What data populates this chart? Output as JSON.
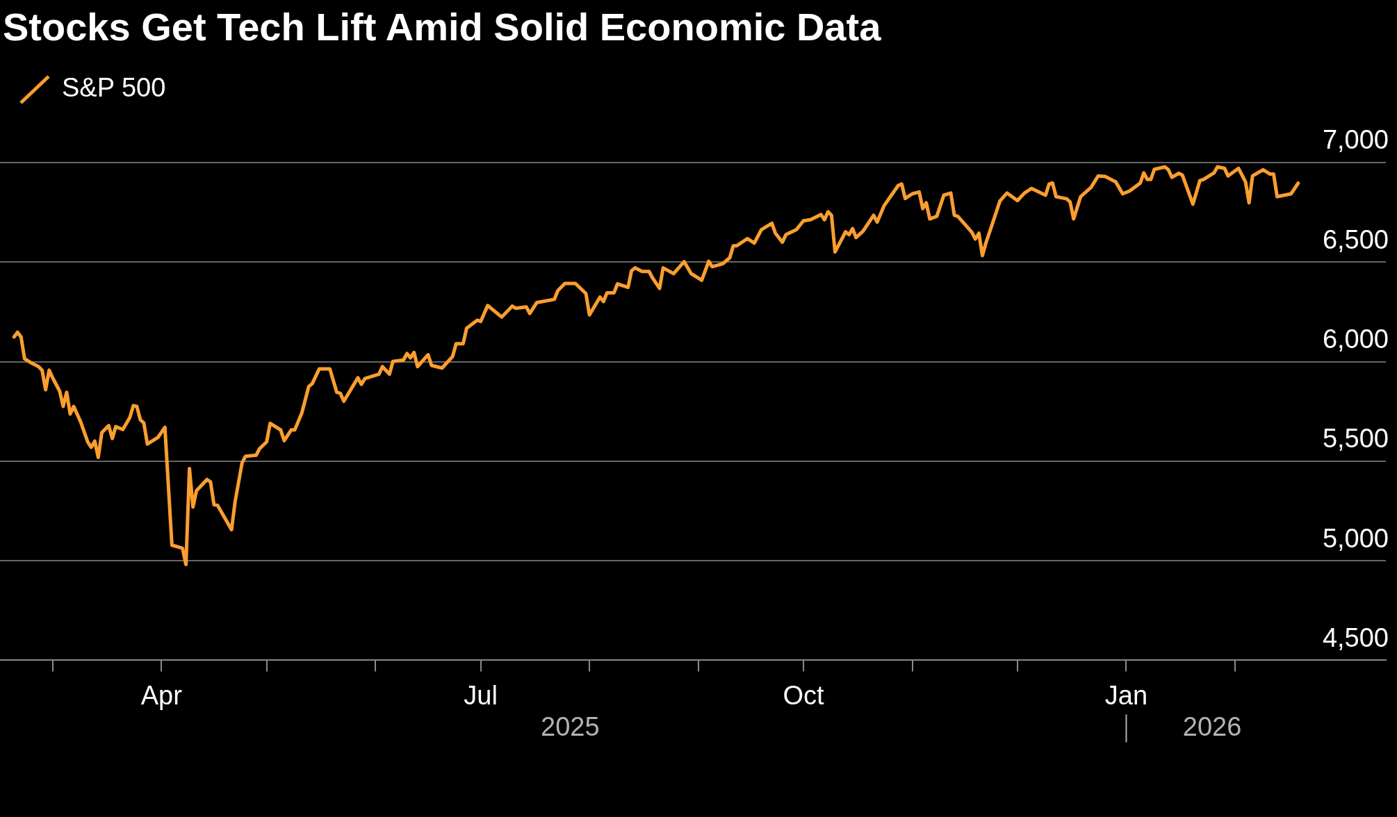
{
  "chart_data": {
    "type": "line",
    "title": "Stocks Get Tech Lift Amid Solid Economic Data",
    "x": [
      "2025-02-18",
      "2025-02-19",
      "2025-02-20",
      "2025-02-21",
      "2025-02-23",
      "2025-02-25",
      "2025-02-26",
      "2025-02-27",
      "2025-02-28",
      "2025-03-01",
      "2025-03-03",
      "2025-03-04",
      "2025-03-05",
      "2025-03-06",
      "2025-03-07",
      "2025-03-09",
      "2025-03-11",
      "2025-03-12",
      "2025-03-13",
      "2025-03-14",
      "2025-03-15",
      "2025-03-17",
      "2025-03-18",
      "2025-03-19",
      "2025-03-21",
      "2025-03-23",
      "2025-03-24",
      "2025-03-25",
      "2025-03-26",
      "2025-03-27",
      "2025-03-28",
      "2025-03-31",
      "2025-04-02",
      "2025-04-04",
      "2025-04-07",
      "2025-04-08",
      "2025-04-09",
      "2025-04-10",
      "2025-04-11",
      "2025-04-14",
      "2025-04-15",
      "2025-04-16",
      "2025-04-17",
      "2025-04-21",
      "2025-04-22",
      "2025-04-24",
      "2025-04-25",
      "2025-04-28",
      "2025-04-29",
      "2025-05-01",
      "2025-05-02",
      "2025-05-05",
      "2025-05-06",
      "2025-05-08",
      "2025-05-09",
      "2025-05-11",
      "2025-05-13",
      "2025-05-14",
      "2025-05-16",
      "2025-05-19",
      "2025-05-21",
      "2025-05-22",
      "2025-05-23",
      "2025-05-27",
      "2025-05-28",
      "2025-05-29",
      "2025-06-02",
      "2025-06-03",
      "2025-06-05",
      "2025-06-06",
      "2025-06-09",
      "2025-06-10",
      "2025-06-11",
      "2025-06-12",
      "2025-06-13",
      "2025-06-16",
      "2025-06-17",
      "2025-06-20",
      "2025-06-23",
      "2025-06-24",
      "2025-06-26",
      "2025-06-27",
      "2025-06-30",
      "2025-07-01",
      "2025-07-03",
      "2025-07-07",
      "2025-07-10",
      "2025-07-11",
      "2025-07-14",
      "2025-07-15",
      "2025-07-17",
      "2025-07-22",
      "2025-07-23",
      "2025-07-25",
      "2025-07-28",
      "2025-07-30",
      "2025-07-31",
      "2025-08-01",
      "2025-08-04",
      "2025-08-05",
      "2025-08-06",
      "2025-08-08",
      "2025-08-09",
      "2025-08-12",
      "2025-08-13",
      "2025-08-14",
      "2025-08-16",
      "2025-08-18",
      "2025-08-19",
      "2025-08-21",
      "2025-08-22",
      "2025-08-25",
      "2025-08-28",
      "2025-08-30",
      "2025-09-02",
      "2025-09-04",
      "2025-09-05",
      "2025-09-08",
      "2025-09-10",
      "2025-09-11",
      "2025-09-12",
      "2025-09-15",
      "2025-09-17",
      "2025-09-19",
      "2025-09-22",
      "2025-09-23",
      "2025-09-25",
      "2025-09-26",
      "2025-09-29",
      "2025-10-01",
      "2025-10-03",
      "2025-10-06",
      "2025-10-07",
      "2025-10-08",
      "2025-10-09",
      "2025-10-10",
      "2025-10-13",
      "2025-10-14",
      "2025-10-15",
      "2025-10-16",
      "2025-10-18",
      "2025-10-21",
      "2025-10-22",
      "2025-10-24",
      "2025-10-28",
      "2025-10-29",
      "2025-10-30",
      "2025-11-01",
      "2025-11-03",
      "2025-11-04",
      "2025-11-05",
      "2025-11-06",
      "2025-11-08",
      "2025-11-10",
      "2025-11-12",
      "2025-11-13",
      "2025-11-14",
      "2025-11-16",
      "2025-11-18",
      "2025-11-19",
      "2025-11-20",
      "2025-11-21",
      "2025-11-22",
      "2025-11-24",
      "2025-11-26",
      "2025-11-28",
      "2025-12-01",
      "2025-12-03",
      "2025-12-05",
      "2025-12-09",
      "2025-12-10",
      "2025-12-11",
      "2025-12-12",
      "2025-12-15",
      "2025-12-16",
      "2025-12-17",
      "2025-12-19",
      "2025-12-22",
      "2025-12-24",
      "2025-12-26",
      "2025-12-29",
      "2025-12-31",
      "2026-01-02",
      "2026-01-05",
      "2026-01-06",
      "2026-01-07",
      "2026-01-08",
      "2026-01-09",
      "2026-01-12",
      "2026-01-13",
      "2026-01-14",
      "2026-01-16",
      "2026-01-17",
      "2026-01-20",
      "2026-01-22",
      "2026-01-23",
      "2026-01-26",
      "2026-01-27",
      "2026-01-29",
      "2026-01-30",
      "2026-02-02",
      "2026-02-04",
      "2026-02-05",
      "2026-02-06",
      "2026-02-09",
      "2026-02-11",
      "2026-02-12",
      "2026-02-13",
      "2026-02-17",
      "2026-02-19"
    ],
    "series": [
      {
        "name": "S&P 500",
        "color": "#fb9e2f",
        "values": [
          6124,
          6148,
          6124,
          6015,
          5993,
          5975,
          5957,
          5859,
          5957,
          5919,
          5852,
          5775,
          5846,
          5737,
          5775,
          5697,
          5597,
          5570,
          5601,
          5519,
          5643,
          5679,
          5614,
          5674,
          5659,
          5719,
          5779,
          5775,
          5708,
          5692,
          5586,
          5619,
          5670,
          5078,
          5063,
          4981,
          5463,
          5270,
          5352,
          5408,
          5396,
          5281,
          5279,
          5156,
          5296,
          5492,
          5525,
          5530,
          5563,
          5597,
          5690,
          5657,
          5603,
          5657,
          5657,
          5741,
          5875,
          5890,
          5964,
          5964,
          5846,
          5841,
          5801,
          5919,
          5886,
          5915,
          5937,
          5975,
          5937,
          6001,
          6008,
          6041,
          6019,
          6046,
          5975,
          6035,
          5981,
          5968,
          6026,
          6090,
          6090,
          6168,
          6208,
          6202,
          6282,
          6224,
          6279,
          6268,
          6275,
          6242,
          6297,
          6313,
          6357,
          6393,
          6393,
          6359,
          6342,
          6235,
          6324,
          6302,
          6346,
          6346,
          6391,
          6373,
          6457,
          6471,
          6453,
          6453,
          6420,
          6368,
          6471,
          6442,
          6502,
          6442,
          6409,
          6504,
          6477,
          6492,
          6522,
          6582,
          6582,
          6618,
          6596,
          6663,
          6695,
          6645,
          6600,
          6638,
          6663,
          6708,
          6713,
          6739,
          6713,
          6753,
          6735,
          6551,
          6652,
          6638,
          6668,
          6623,
          6656,
          6735,
          6701,
          6784,
          6885,
          6892,
          6820,
          6843,
          6852,
          6769,
          6798,
          6717,
          6730,
          6836,
          6847,
          6735,
          6730,
          6690,
          6650,
          6616,
          6645,
          6533,
          6596,
          6701,
          6807,
          6847,
          6809,
          6847,
          6870,
          6836,
          6892,
          6897,
          6829,
          6818,
          6802,
          6717,
          6829,
          6876,
          6933,
          6930,
          6903,
          6843,
          6858,
          6897,
          6948,
          6915,
          6915,
          6966,
          6978,
          6964,
          6926,
          6946,
          6937,
          6791,
          6910,
          6915,
          6948,
          6978,
          6971,
          6933,
          6971,
          6903,
          6798,
          6933,
          6964,
          6942,
          6942,
          6829,
          6843,
          6897
        ]
      }
    ],
    "xlim": [
      "2025-02-14",
      "2026-03-16"
    ],
    "xticks": [
      {
        "value": "2025-03-01",
        "label": null
      },
      {
        "value": "2025-04-01",
        "label": "Apr"
      },
      {
        "value": "2025-05-01",
        "label": null
      },
      {
        "value": "2025-06-01",
        "label": null
      },
      {
        "value": "2025-07-01",
        "label": "Jul"
      },
      {
        "value": "2025-08-01",
        "label": null
      },
      {
        "value": "2025-09-01",
        "label": null
      },
      {
        "value": "2025-10-01",
        "label": "Oct"
      },
      {
        "value": "2025-11-01",
        "label": null
      },
      {
        "value": "2025-12-01",
        "label": null
      },
      {
        "value": "2026-01-01",
        "label": "Jan"
      },
      {
        "value": "2026-02-01",
        "label": null
      }
    ],
    "ylim": [
      4500,
      7000
    ],
    "yticks": [
      {
        "value": 4500,
        "label": "4,500"
      },
      {
        "value": 5000,
        "label": "5,000"
      },
      {
        "value": 5500,
        "label": "5,500"
      },
      {
        "value": 6000,
        "label": "6,000"
      },
      {
        "value": 6500,
        "label": "6,500"
      },
      {
        "value": 7000,
        "label": "7,000"
      }
    ],
    "grid": "y",
    "legend": "top left",
    "marker": "none",
    "line_style": "solid",
    "annotations": [
      "2025",
      "2026"
    ]
  }
}
